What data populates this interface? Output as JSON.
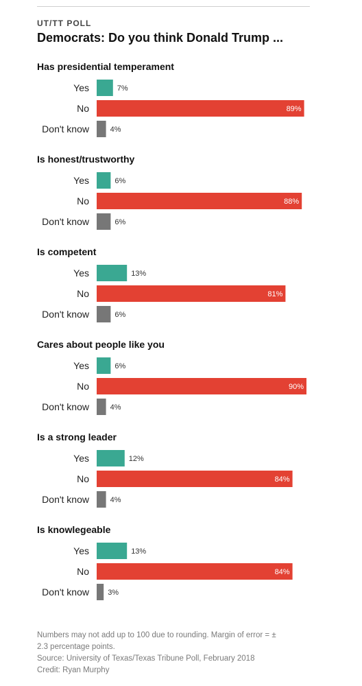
{
  "header": {
    "kicker": "UT/TT POLL",
    "title": "Democrats: Do you think Donald Trump ..."
  },
  "colors": {
    "yes": "#3aa892",
    "no": "#e34133",
    "dont_know": "#777777"
  },
  "chart_data": {
    "type": "bar",
    "orientation": "horizontal",
    "unit": "%",
    "categories": [
      "Yes",
      "No",
      "Don't know"
    ],
    "groups": [
      {
        "question": "Has presidential temperament",
        "values": [
          7,
          89,
          4
        ]
      },
      {
        "question": "Is honest/trustworthy",
        "values": [
          6,
          88,
          6
        ]
      },
      {
        "question": "Is competent",
        "values": [
          13,
          81,
          6
        ]
      },
      {
        "question": "Cares about people like you",
        "values": [
          6,
          90,
          4
        ]
      },
      {
        "question": "Is a strong leader",
        "values": [
          12,
          84,
          4
        ]
      },
      {
        "question": "Is knowlegeable",
        "values": [
          13,
          84,
          3
        ]
      }
    ]
  },
  "footer": {
    "note_line1": "Numbers may not add up to 100 due to rounding. Margin of error = ±",
    "note_line2": "2.3 percentage points.",
    "source": "Source: University of Texas/Texas Tribune Poll, February 2018",
    "credit": "Credit: Ryan Murphy"
  }
}
